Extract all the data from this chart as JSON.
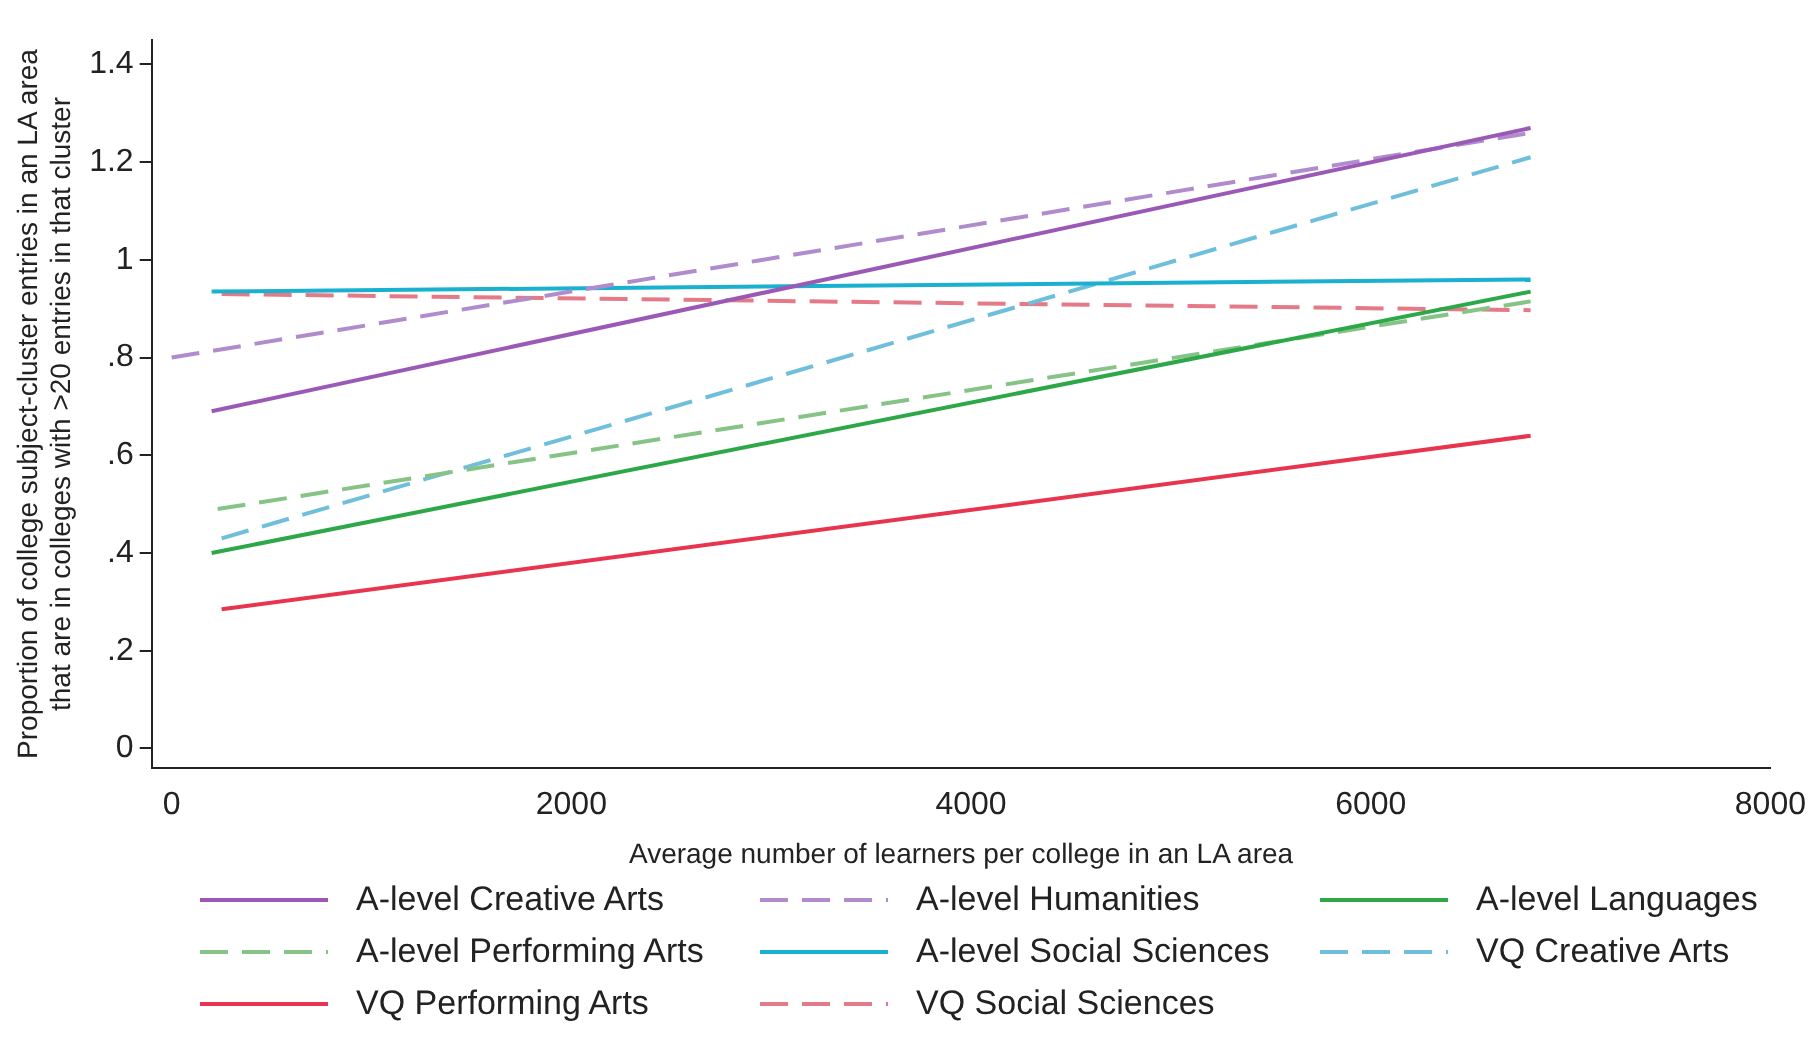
{
  "chart_data": {
    "type": "line",
    "xlabel": "Average number of learners per college in an LA area",
    "ylabel": "Proportion of college subject-cluster entries in an LA area\nthat are in colleges with >20 entries in that cluster",
    "xlim": [
      -100,
      8000
    ],
    "xticks": [
      0,
      2000,
      4000,
      6000,
      8000
    ],
    "ylim": [
      -0.04,
      1.45
    ],
    "yticks": [
      {
        "value": 0,
        "label": "0"
      },
      {
        "value": 0.2,
        "label": ".2"
      },
      {
        "value": 0.4,
        "label": ".4"
      },
      {
        "value": 0.6,
        "label": ".6"
      },
      {
        "value": 0.8,
        "label": ".8"
      },
      {
        "value": 1,
        "label": "1"
      },
      {
        "value": 1.2,
        "label": "1.2"
      },
      {
        "value": 1.4,
        "label": "1.4"
      }
    ],
    "grid": false,
    "legend": "bottom",
    "marker": "none",
    "series": [
      {
        "name": "A-level Creative Arts",
        "color": "#9b59b6",
        "line_style": "solid",
        "x": [
          200,
          6800
        ],
        "values": [
          0.69,
          1.27
        ]
      },
      {
        "name": "A-level Humanities",
        "color": "#b08ccc",
        "line_style": "dashed",
        "x": [
          0,
          6800
        ],
        "values": [
          0.8,
          1.26
        ]
      },
      {
        "name": "A-level Languages",
        "color": "#2ca848",
        "line_style": "solid",
        "x": [
          200,
          6800
        ],
        "values": [
          0.4,
          0.935
        ]
      },
      {
        "name": "A-level Performing Arts",
        "color": "#86c386",
        "line_style": "dashed",
        "x": [
          230,
          6800
        ],
        "values": [
          0.49,
          0.915
        ]
      },
      {
        "name": "A-level Social Sciences",
        "color": "#1ab0d0",
        "line_style": "solid",
        "x": [
          200,
          6800
        ],
        "values": [
          0.935,
          0.96
        ]
      },
      {
        "name": "VQ Creative Arts",
        "color": "#6ebedc",
        "line_style": "dashed",
        "x": [
          250,
          6800
        ],
        "values": [
          0.43,
          1.21
        ]
      },
      {
        "name": "VQ Performing Arts",
        "color": "#e8344e",
        "line_style": "solid",
        "x": [
          250,
          6800
        ],
        "values": [
          0.285,
          0.64
        ]
      },
      {
        "name": "VQ Social Sciences",
        "color": "#e47a88",
        "line_style": "dashed",
        "x": [
          250,
          6800
        ],
        "values": [
          0.93,
          0.897
        ]
      }
    ]
  }
}
